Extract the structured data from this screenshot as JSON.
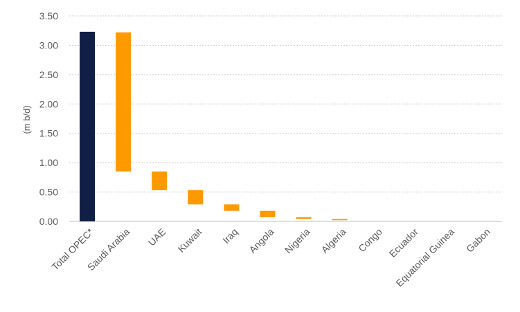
{
  "chart_data": {
    "type": "bar",
    "subtype": "waterfall",
    "ylabel": "(m b/d)",
    "ylim": [
      0,
      3.5
    ],
    "yticks": [
      "0.00",
      "0.50",
      "1.00",
      "1.50",
      "2.00",
      "2.50",
      "3.00",
      "3.50"
    ],
    "grid": true,
    "categories": [
      "Total OPEC*",
      "Saudi Arabia",
      "UAE",
      "Kuwait",
      "Iraq",
      "Angola",
      "Nigeria",
      "Algeria",
      "Congo",
      "Ecuador",
      "Equatorial Guinea",
      "Gabon"
    ],
    "bars": [
      {
        "category": "Total OPEC*",
        "start": 0.0,
        "end": 3.23,
        "kind": "total"
      },
      {
        "category": "Saudi Arabia",
        "start": 0.85,
        "end": 3.22,
        "kind": "step"
      },
      {
        "category": "UAE",
        "start": 0.53,
        "end": 0.85,
        "kind": "step"
      },
      {
        "category": "Kuwait",
        "start": 0.29,
        "end": 0.53,
        "kind": "step"
      },
      {
        "category": "Iraq",
        "start": 0.18,
        "end": 0.29,
        "kind": "step"
      },
      {
        "category": "Angola",
        "start": 0.07,
        "end": 0.18,
        "kind": "step"
      },
      {
        "category": "Nigeria",
        "start": 0.04,
        "end": 0.07,
        "kind": "step"
      },
      {
        "category": "Algeria",
        "start": 0.02,
        "end": 0.04,
        "kind": "step"
      },
      {
        "category": "Congo",
        "start": 0.0,
        "end": 0.0,
        "kind": "step"
      },
      {
        "category": "Ecuador",
        "start": 0.0,
        "end": 0.0,
        "kind": "step"
      },
      {
        "category": "Equatorial Guinea",
        "start": 0.0,
        "end": 0.0,
        "kind": "step"
      },
      {
        "category": "Gabon",
        "start": 0.0,
        "end": 0.0,
        "kind": "step"
      }
    ],
    "colors": {
      "total": "#0f1f45",
      "step": "#ff9900"
    }
  }
}
